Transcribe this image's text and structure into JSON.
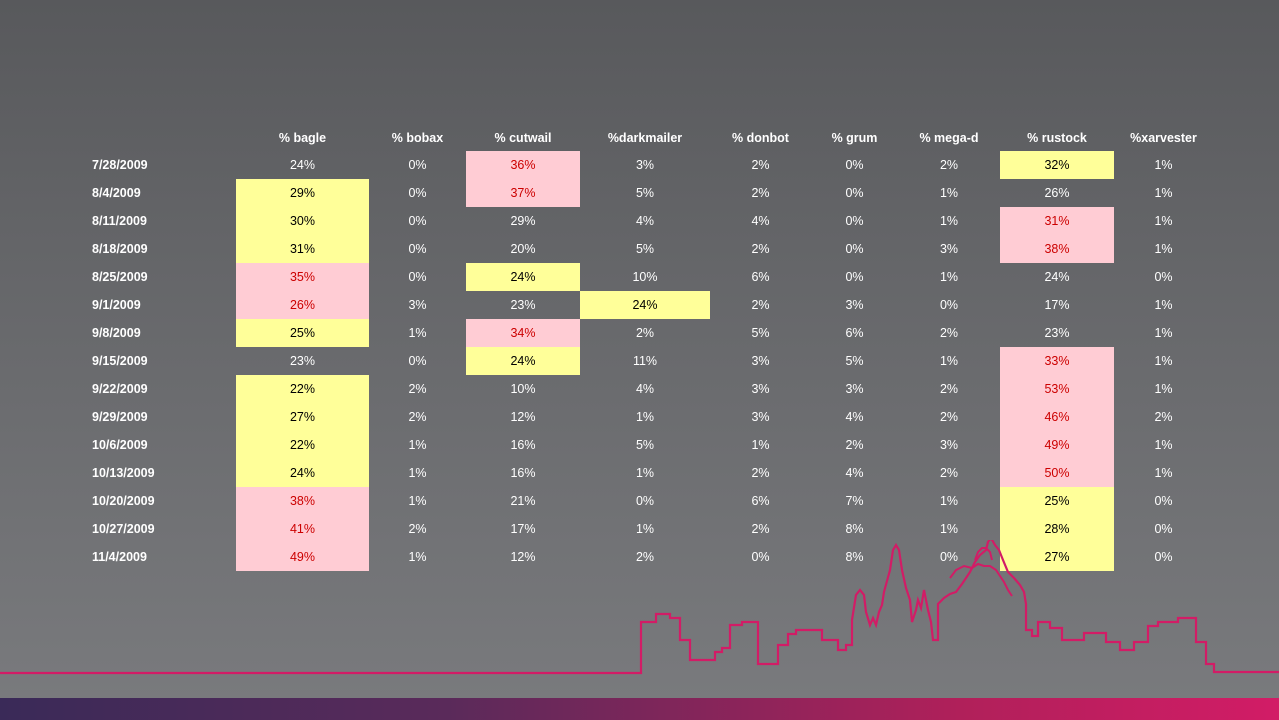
{
  "table": {
    "headers": [
      "",
      "% bagle",
      "% bobax",
      "% cutwail",
      "%darkmailer",
      "% donbot",
      "% grum",
      "% mega-d",
      "% rustock",
      "%xarvester"
    ],
    "rows": [
      {
        "date": "7/28/2009",
        "values": [
          "24%",
          "0%",
          "36%",
          "3%",
          "2%",
          "0%",
          "2%",
          "32%",
          "1%"
        ]
      },
      {
        "date": "8/4/2009",
        "values": [
          "29%",
          "0%",
          "37%",
          "5%",
          "2%",
          "0%",
          "1%",
          "26%",
          "1%"
        ]
      },
      {
        "date": "8/11/2009",
        "values": [
          "30%",
          "0%",
          "29%",
          "4%",
          "4%",
          "0%",
          "1%",
          "31%",
          "1%"
        ]
      },
      {
        "date": "8/18/2009",
        "values": [
          "31%",
          "0%",
          "20%",
          "5%",
          "2%",
          "0%",
          "3%",
          "38%",
          "1%"
        ]
      },
      {
        "date": "8/25/2009",
        "values": [
          "35%",
          "0%",
          "24%",
          "10%",
          "6%",
          "0%",
          "1%",
          "24%",
          "0%"
        ]
      },
      {
        "date": "9/1/2009",
        "values": [
          "26%",
          "3%",
          "23%",
          "24%",
          "2%",
          "3%",
          "0%",
          "17%",
          "1%"
        ]
      },
      {
        "date": "9/8/2009",
        "values": [
          "25%",
          "1%",
          "34%",
          "2%",
          "5%",
          "6%",
          "2%",
          "23%",
          "1%"
        ]
      },
      {
        "date": "9/15/2009",
        "values": [
          "23%",
          "0%",
          "24%",
          "11%",
          "3%",
          "5%",
          "1%",
          "33%",
          "1%"
        ]
      },
      {
        "date": "9/22/2009",
        "values": [
          "22%",
          "2%",
          "10%",
          "4%",
          "3%",
          "3%",
          "2%",
          "53%",
          "1%"
        ]
      },
      {
        "date": "9/29/2009",
        "values": [
          "27%",
          "2%",
          "12%",
          "1%",
          "3%",
          "4%",
          "2%",
          "46%",
          "2%"
        ]
      },
      {
        "date": "10/6/2009",
        "values": [
          "22%",
          "1%",
          "16%",
          "5%",
          "1%",
          "2%",
          "3%",
          "49%",
          "1%"
        ]
      },
      {
        "date": "10/13/2009",
        "values": [
          "24%",
          "1%",
          "16%",
          "1%",
          "2%",
          "4%",
          "2%",
          "50%",
          "1%"
        ]
      },
      {
        "date": "10/20/2009",
        "values": [
          "38%",
          "1%",
          "21%",
          "0%",
          "6%",
          "7%",
          "1%",
          "25%",
          "0%"
        ]
      },
      {
        "date": "10/27/2009",
        "values": [
          "41%",
          "2%",
          "17%",
          "1%",
          "2%",
          "8%",
          "1%",
          "28%",
          "0%"
        ]
      },
      {
        "date": "11/4/2009",
        "values": [
          "49%",
          "1%",
          "12%",
          "2%",
          "0%",
          "8%",
          "0%",
          "27%",
          "0%"
        ]
      }
    ],
    "highlights": [
      [
        "",
        "",
        "p",
        "",
        "",
        "",
        "",
        "y",
        ""
      ],
      [
        "y",
        "",
        "p",
        "",
        "",
        "",
        "",
        "",
        ""
      ],
      [
        "y",
        "",
        "",
        "",
        "",
        "",
        "",
        "p",
        ""
      ],
      [
        "y",
        "",
        "",
        "",
        "",
        "",
        "",
        "p",
        ""
      ],
      [
        "p",
        "",
        "y",
        "",
        "",
        "",
        "",
        "",
        ""
      ],
      [
        "p",
        "",
        "",
        "y",
        "",
        "",
        "",
        "",
        ""
      ],
      [
        "y",
        "",
        "p",
        "",
        "",
        "",
        "",
        "",
        ""
      ],
      [
        "",
        "",
        "y",
        "",
        "",
        "",
        "",
        "p",
        ""
      ],
      [
        "y",
        "",
        "",
        "",
        "",
        "",
        "",
        "p",
        ""
      ],
      [
        "y",
        "",
        "",
        "",
        "",
        "",
        "",
        "p",
        ""
      ],
      [
        "y",
        "",
        "",
        "",
        "",
        "",
        "",
        "p",
        ""
      ],
      [
        "y",
        "",
        "",
        "",
        "",
        "",
        "",
        "p",
        ""
      ],
      [
        "p",
        "",
        "",
        "",
        "",
        "",
        "",
        "y",
        ""
      ],
      [
        "p",
        "",
        "",
        "",
        "",
        "",
        "",
        "y",
        ""
      ],
      [
        "p",
        "",
        "",
        "",
        "",
        "",
        "",
        "y",
        ""
      ]
    ]
  },
  "colors": {
    "highlight_yellow": "#ffff99",
    "highlight_pink": "#ffccd4",
    "pink_text": "#cc0000",
    "skyline": "#d21c66"
  }
}
